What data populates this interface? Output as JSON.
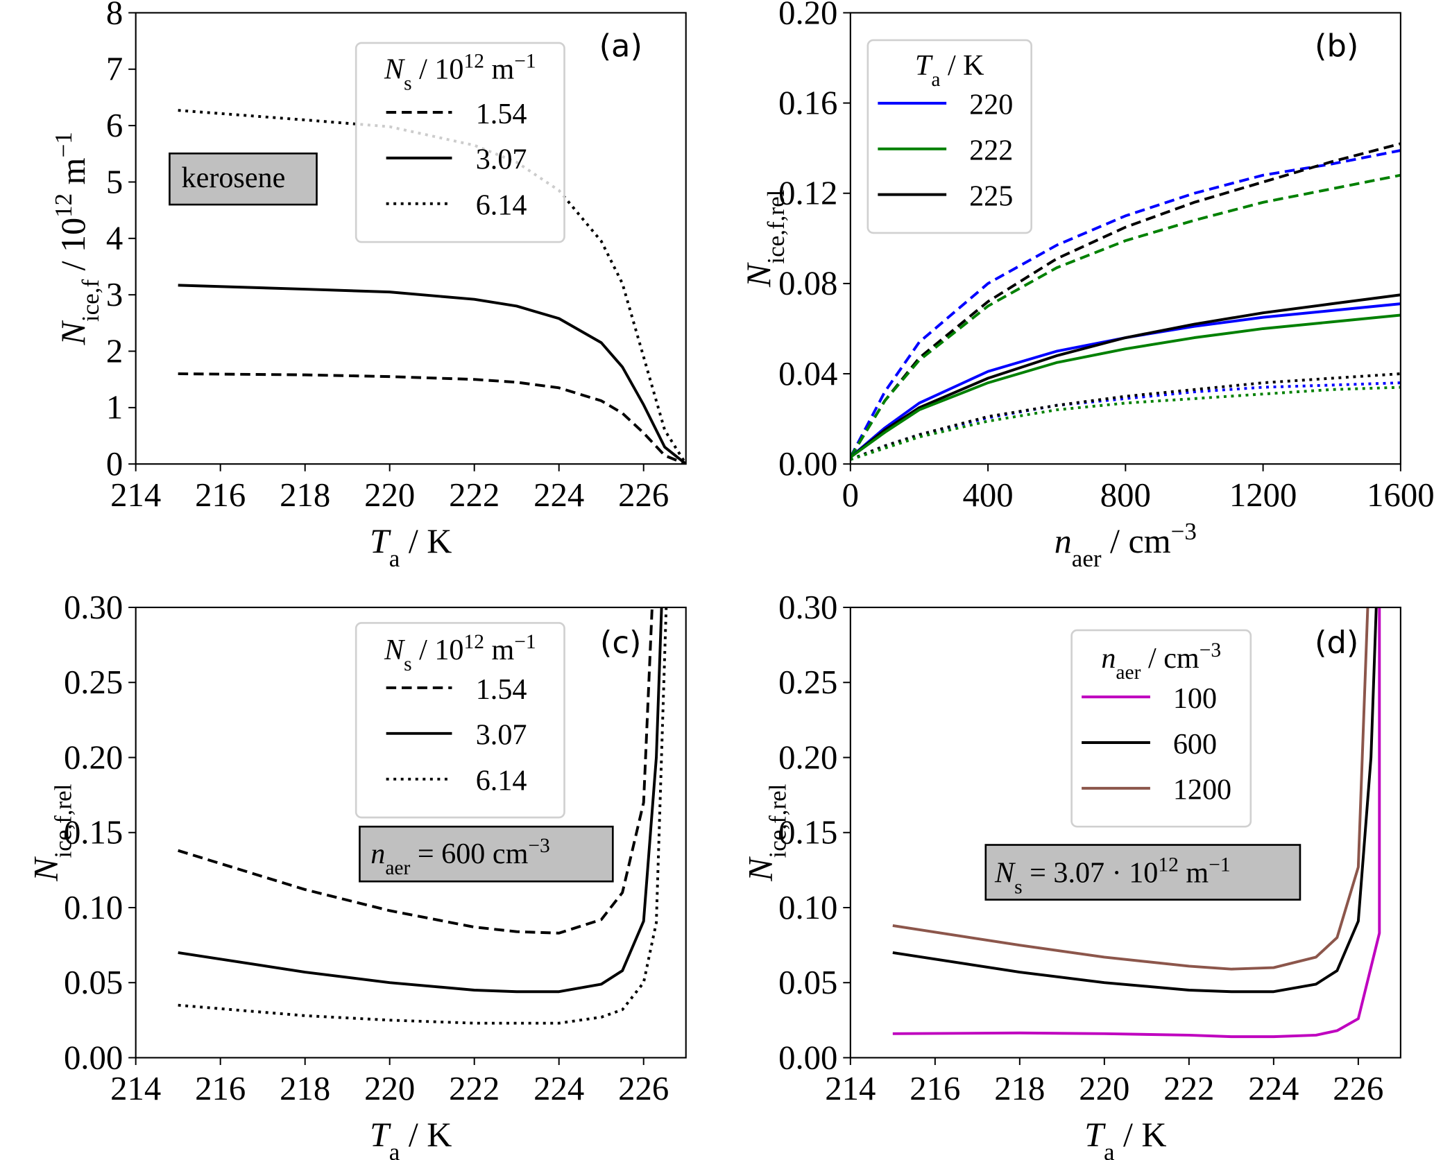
{
  "chart_data": [
    {
      "id": "a",
      "type": "line",
      "panel_label": "(a)",
      "xlim": [
        214,
        227
      ],
      "ylim": [
        0,
        8
      ],
      "xticks": [
        214,
        216,
        218,
        220,
        222,
        224,
        226
      ],
      "yticks": [
        0,
        1,
        2,
        3,
        4,
        5,
        6,
        7,
        8
      ],
      "ytick_decimals": 0,
      "xlabel": [
        {
          "t": "T",
          "s": "i"
        },
        {
          "t": "a",
          "s": "sub"
        },
        {
          "t": " / K",
          "s": ""
        }
      ],
      "ylabel": [
        {
          "t": "N",
          "s": "i"
        },
        {
          "t": "ice,f",
          "s": "sub"
        },
        {
          "t": "  /  10",
          "s": ""
        },
        {
          "t": "12",
          "s": "sup"
        },
        {
          "t": " m",
          "s": ""
        },
        {
          "t": "−1",
          "s": "sup"
        }
      ],
      "legend": {
        "title": [
          {
            "t": "N",
            "s": "i"
          },
          {
            "t": "s",
            "s": "sub"
          },
          {
            "t": " / 10",
            "s": ""
          },
          {
            "t": "12",
            "s": "sup"
          },
          {
            "t": " m",
            "s": ""
          },
          {
            "t": "−1",
            "s": "sup"
          }
        ],
        "entries": [
          {
            "label": "1.54",
            "color": "#000000",
            "dash": "dashed"
          },
          {
            "label": "3.07",
            "color": "#000000",
            "dash": "solid"
          },
          {
            "label": "6.14",
            "color": "#000000",
            "dash": "dotted"
          }
        ]
      },
      "annotation": [
        {
          "t": "kerosene",
          "s": ""
        }
      ],
      "series": [
        {
          "name": "1.54",
          "color": "#000000",
          "dash": "dashed",
          "x": [
            215,
            218,
            220,
            222,
            223,
            224,
            225,
            225.5,
            226,
            226.5,
            227
          ],
          "y": [
            1.6,
            1.58,
            1.55,
            1.5,
            1.45,
            1.35,
            1.12,
            0.9,
            0.55,
            0.15,
            0
          ]
        },
        {
          "name": "3.07",
          "color": "#000000",
          "dash": "solid",
          "x": [
            215,
            218,
            220,
            222,
            223,
            224,
            225,
            225.5,
            226,
            226.5,
            227
          ],
          "y": [
            3.17,
            3.1,
            3.05,
            2.92,
            2.8,
            2.58,
            2.15,
            1.72,
            1.05,
            0.3,
            0
          ]
        },
        {
          "name": "6.14",
          "color": "#000000",
          "dash": "dotted",
          "x": [
            215,
            218,
            220,
            222,
            223,
            224,
            225,
            225.5,
            226,
            226.5,
            227
          ],
          "y": [
            6.27,
            6.1,
            5.98,
            5.65,
            5.35,
            4.85,
            3.95,
            3.2,
            1.9,
            0.6,
            0
          ]
        }
      ]
    },
    {
      "id": "b",
      "type": "line",
      "panel_label": "(b)",
      "xlim": [
        0,
        1600
      ],
      "ylim": [
        0,
        0.2
      ],
      "xticks": [
        0,
        400,
        800,
        1200,
        1600
      ],
      "yticks": [
        0,
        0.04,
        0.08,
        0.12,
        0.16,
        0.2
      ],
      "ytick_decimals": 2,
      "xlabel": [
        {
          "t": "n",
          "s": "i"
        },
        {
          "t": "aer",
          "s": "sub"
        },
        {
          "t": " / cm",
          "s": ""
        },
        {
          "t": "−3",
          "s": "sup"
        }
      ],
      "ylabel": [
        {
          "t": "N",
          "s": "i"
        },
        {
          "t": "ice,f,rel",
          "s": "sub"
        }
      ],
      "legend": {
        "title": [
          {
            "t": "T",
            "s": "i"
          },
          {
            "t": "a",
            "s": "sub"
          },
          {
            "t": " / K",
            "s": ""
          }
        ],
        "entries": [
          {
            "label": "220",
            "color": "#0000ff",
            "dash": "solid"
          },
          {
            "label": "222",
            "color": "#008000",
            "dash": "solid"
          },
          {
            "label": "225",
            "color": "#000000",
            "dash": "solid"
          }
        ]
      },
      "annotation": null,
      "series": [
        {
          "name": "220 dashed",
          "color": "#0000ff",
          "dash": "dashed",
          "x": [
            0,
            100,
            200,
            400,
            600,
            800,
            1000,
            1200,
            1400,
            1600
          ],
          "y": [
            0.003,
            0.032,
            0.054,
            0.08,
            0.097,
            0.11,
            0.12,
            0.128,
            0.133,
            0.139
          ]
        },
        {
          "name": "225 dashed",
          "color": "#000000",
          "dash": "dashed",
          "x": [
            0,
            100,
            200,
            400,
            600,
            800,
            1000,
            1200,
            1400,
            1600
          ],
          "y": [
            0.003,
            0.028,
            0.047,
            0.072,
            0.091,
            0.105,
            0.116,
            0.125,
            0.134,
            0.142
          ]
        },
        {
          "name": "222 dashed",
          "color": "#008000",
          "dash": "dashed",
          "x": [
            0,
            100,
            200,
            400,
            600,
            800,
            1000,
            1200,
            1400,
            1600
          ],
          "y": [
            0.003,
            0.028,
            0.046,
            0.07,
            0.087,
            0.099,
            0.108,
            0.116,
            0.122,
            0.128
          ]
        },
        {
          "name": "220 solid",
          "color": "#0000ff",
          "dash": "solid",
          "x": [
            0,
            100,
            200,
            400,
            600,
            800,
            1000,
            1200,
            1400,
            1600
          ],
          "y": [
            0.003,
            0.016,
            0.027,
            0.041,
            0.05,
            0.056,
            0.061,
            0.065,
            0.068,
            0.071
          ]
        },
        {
          "name": "225 solid",
          "color": "#000000",
          "dash": "solid",
          "x": [
            0,
            100,
            200,
            400,
            600,
            800,
            1000,
            1200,
            1400,
            1600
          ],
          "y": [
            0.003,
            0.015,
            0.025,
            0.038,
            0.048,
            0.056,
            0.062,
            0.067,
            0.071,
            0.075
          ]
        },
        {
          "name": "222 solid",
          "color": "#008000",
          "dash": "solid",
          "x": [
            0,
            100,
            200,
            400,
            600,
            800,
            1000,
            1200,
            1400,
            1600
          ],
          "y": [
            0.003,
            0.014,
            0.024,
            0.036,
            0.045,
            0.051,
            0.056,
            0.06,
            0.063,
            0.066
          ]
        },
        {
          "name": "220 dotted",
          "color": "#0000ff",
          "dash": "dotted",
          "x": [
            0,
            100,
            200,
            400,
            600,
            800,
            1000,
            1200,
            1400,
            1600
          ],
          "y": [
            0.002,
            0.008,
            0.013,
            0.0205,
            0.026,
            0.029,
            0.032,
            0.034,
            0.035,
            0.036
          ]
        },
        {
          "name": "225 dotted",
          "color": "#000000",
          "dash": "dotted",
          "x": [
            0,
            100,
            200,
            400,
            600,
            800,
            1000,
            1200,
            1400,
            1600
          ],
          "y": [
            0.002,
            0.008,
            0.013,
            0.021,
            0.026,
            0.03,
            0.033,
            0.036,
            0.038,
            0.04
          ]
        },
        {
          "name": "222 dotted",
          "color": "#008000",
          "dash": "dotted",
          "x": [
            0,
            100,
            200,
            400,
            600,
            800,
            1000,
            1200,
            1400,
            1600
          ],
          "y": [
            0.002,
            0.007,
            0.012,
            0.019,
            0.024,
            0.027,
            0.029,
            0.031,
            0.033,
            0.034
          ]
        }
      ]
    },
    {
      "id": "c",
      "type": "line",
      "panel_label": "(c)",
      "xlim": [
        214,
        227
      ],
      "ylim": [
        0,
        0.3
      ],
      "xticks": [
        214,
        216,
        218,
        220,
        222,
        224,
        226
      ],
      "yticks": [
        0,
        0.05,
        0.1,
        0.15,
        0.2,
        0.25,
        0.3
      ],
      "ytick_decimals": 2,
      "xlabel": [
        {
          "t": "T",
          "s": "i"
        },
        {
          "t": "a",
          "s": "sub"
        },
        {
          "t": " / K",
          "s": ""
        }
      ],
      "ylabel": [
        {
          "t": "N",
          "s": "i"
        },
        {
          "t": "ice,f,rel",
          "s": "sub"
        }
      ],
      "legend": {
        "title": [
          {
            "t": "N",
            "s": "i"
          },
          {
            "t": "s",
            "s": "sub"
          },
          {
            "t": " / 10",
            "s": ""
          },
          {
            "t": "12",
            "s": "sup"
          },
          {
            "t": " m",
            "s": ""
          },
          {
            "t": "−1",
            "s": "sup"
          }
        ],
        "entries": [
          {
            "label": "1.54",
            "color": "#000000",
            "dash": "dashed"
          },
          {
            "label": "3.07",
            "color": "#000000",
            "dash": "solid"
          },
          {
            "label": "6.14",
            "color": "#000000",
            "dash": "dotted"
          }
        ]
      },
      "annotation": [
        {
          "t": "n",
          "s": "i"
        },
        {
          "t": "aer",
          "s": "sub"
        },
        {
          "t": " = 600 cm",
          "s": ""
        },
        {
          "t": "−3",
          "s": "sup"
        }
      ],
      "series": [
        {
          "name": "1.54",
          "color": "#000000",
          "dash": "dashed",
          "x": [
            215,
            218,
            220,
            222,
            223,
            224,
            225,
            225.5,
            226,
            226.2,
            226.3
          ],
          "y": [
            0.138,
            0.112,
            0.098,
            0.087,
            0.084,
            0.083,
            0.092,
            0.11,
            0.17,
            0.3,
            0.36
          ]
        },
        {
          "name": "3.07",
          "color": "#000000",
          "dash": "solid",
          "x": [
            215,
            218,
            220,
            222,
            223,
            224,
            225,
            225.5,
            226,
            226.3,
            226.5
          ],
          "y": [
            0.07,
            0.057,
            0.05,
            0.045,
            0.044,
            0.044,
            0.049,
            0.058,
            0.091,
            0.2,
            0.36
          ]
        },
        {
          "name": "6.14",
          "color": "#000000",
          "dash": "dotted",
          "x": [
            215,
            218,
            220,
            222,
            223,
            224,
            225,
            225.5,
            226,
            226.3,
            226.6
          ],
          "y": [
            0.035,
            0.028,
            0.025,
            0.023,
            0.023,
            0.023,
            0.027,
            0.032,
            0.05,
            0.09,
            0.36
          ]
        }
      ]
    },
    {
      "id": "d",
      "type": "line",
      "panel_label": "(d)",
      "xlim": [
        214,
        227
      ],
      "ylim": [
        0,
        0.3
      ],
      "xticks": [
        214,
        216,
        218,
        220,
        222,
        224,
        226
      ],
      "yticks": [
        0,
        0.05,
        0.1,
        0.15,
        0.2,
        0.25,
        0.3
      ],
      "ytick_decimals": 2,
      "xlabel": [
        {
          "t": "T",
          "s": "i"
        },
        {
          "t": "a",
          "s": "sub"
        },
        {
          "t": " / K",
          "s": ""
        }
      ],
      "ylabel": [
        {
          "t": "N",
          "s": "i"
        },
        {
          "t": "ice,f,rel",
          "s": "sub"
        }
      ],
      "legend": {
        "title": [
          {
            "t": "n",
            "s": "i"
          },
          {
            "t": "aer",
            "s": "sub"
          },
          {
            "t": " / cm",
            "s": ""
          },
          {
            "t": "−3",
            "s": "sup"
          }
        ],
        "entries": [
          {
            "label": "100",
            "color": "#bf00bf",
            "dash": "solid"
          },
          {
            "label": "600",
            "color": "#000000",
            "dash": "solid"
          },
          {
            "label": "1200",
            "color": "#8c564b",
            "dash": "solid"
          }
        ]
      },
      "annotation": [
        {
          "t": "N",
          "s": "i"
        },
        {
          "t": "s",
          "s": "sub"
        },
        {
          "t": " = 3.07 · 10",
          "s": ""
        },
        {
          "t": "12",
          "s": "sup"
        },
        {
          "t": " m",
          "s": ""
        },
        {
          "t": "−1",
          "s": "sup"
        }
      ],
      "series": [
        {
          "name": "100",
          "color": "#bf00bf",
          "dash": "solid",
          "x": [
            215,
            218,
            220,
            222,
            223,
            224,
            225,
            225.5,
            226,
            226.5,
            226.5
          ],
          "y": [
            0.016,
            0.0165,
            0.016,
            0.015,
            0.014,
            0.014,
            0.015,
            0.018,
            0.026,
            0.083,
            0.36
          ]
        },
        {
          "name": "600",
          "color": "#000000",
          "dash": "solid",
          "x": [
            215,
            218,
            220,
            222,
            223,
            224,
            225,
            225.5,
            226,
            226.3,
            226.5
          ],
          "y": [
            0.07,
            0.057,
            0.05,
            0.045,
            0.044,
            0.044,
            0.049,
            0.058,
            0.091,
            0.2,
            0.36
          ]
        },
        {
          "name": "1200",
          "color": "#8c564b",
          "dash": "solid",
          "x": [
            215,
            218,
            220,
            222,
            223,
            224,
            225,
            225.5,
            226,
            226.3
          ],
          "y": [
            0.088,
            0.075,
            0.067,
            0.061,
            0.059,
            0.06,
            0.067,
            0.08,
            0.127,
            0.36
          ]
        }
      ]
    }
  ]
}
